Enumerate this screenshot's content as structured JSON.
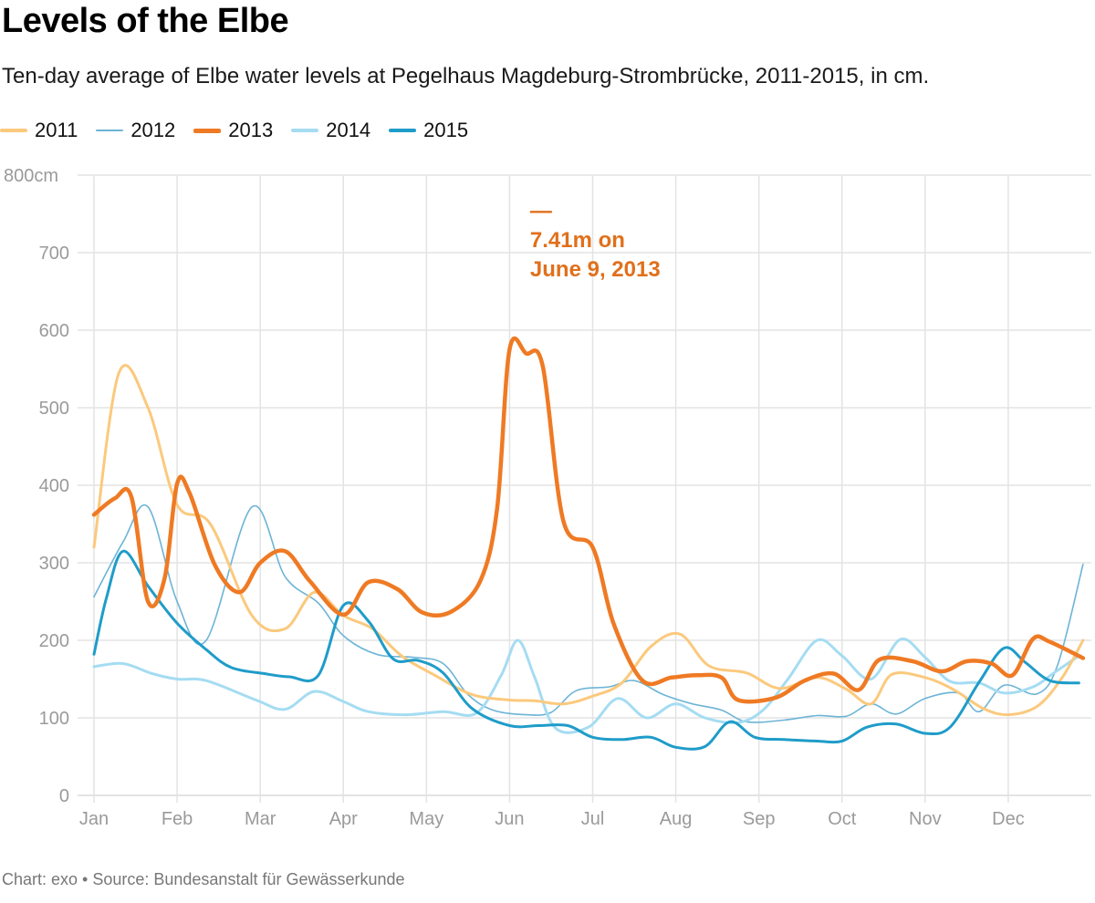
{
  "colors": {
    "2011": "#fbc97d",
    "2012": "#6cb4d6",
    "2013": "#ef7a24",
    "2014": "#a5dcf2",
    "2015": "#1f9cc9",
    "annotation": "#e0701c",
    "grid": "#e3e3e3",
    "axis_text": "#9a9a9a"
  },
  "chart_data": {
    "type": "line",
    "title": "Levels of the Elbe",
    "subtitle": "Ten-day average of Elbe water levels at Pegelhaus Magdeburg-Strombrücke, 2011-2015, in cm.",
    "source": "Chart: exo • Source: Bundesanstalt für Gewässerkunde",
    "x_unit": "month index (0 = start of Jan, 12 = end of Dec)",
    "xlim": [
      0,
      12
    ],
    "ylim": [
      0,
      800
    ],
    "x_ticks": [
      "Jan",
      "Feb",
      "Mar",
      "Apr",
      "May",
      "Jun",
      "Jul",
      "Aug",
      "Sep",
      "Oct",
      "Nov",
      "Dec"
    ],
    "y_ticks": [
      "800cm",
      "700",
      "600",
      "500",
      "400",
      "300",
      "200",
      "100",
      "0"
    ],
    "y_tick_values": [
      800,
      700,
      600,
      500,
      400,
      300,
      200,
      100,
      0
    ],
    "grid": true,
    "legend_position": "top-left",
    "series": [
      {
        "name": "2011",
        "width": 3,
        "points": [
          [
            0,
            320
          ],
          [
            0.3,
            545
          ],
          [
            0.65,
            500
          ],
          [
            1.0,
            375
          ],
          [
            1.4,
            350
          ],
          [
            1.9,
            232
          ],
          [
            2.3,
            215
          ],
          [
            2.65,
            262
          ],
          [
            3.0,
            232
          ],
          [
            3.35,
            215
          ],
          [
            3.7,
            180
          ],
          [
            4.1,
            155
          ],
          [
            4.55,
            130
          ],
          [
            5.0,
            123
          ],
          [
            5.3,
            122
          ],
          [
            5.65,
            118
          ],
          [
            6.0,
            128
          ],
          [
            6.35,
            145
          ],
          [
            6.7,
            192
          ],
          [
            7.05,
            208
          ],
          [
            7.4,
            167
          ],
          [
            7.85,
            158
          ],
          [
            8.25,
            138
          ],
          [
            8.7,
            152
          ],
          [
            9.05,
            137
          ],
          [
            9.35,
            118
          ],
          [
            9.6,
            156
          ],
          [
            10.0,
            152
          ],
          [
            10.35,
            136
          ],
          [
            10.7,
            112
          ],
          [
            11.0,
            104
          ],
          [
            11.35,
            115
          ],
          [
            11.65,
            152
          ],
          [
            11.9,
            200
          ]
        ]
      },
      {
        "name": "2012",
        "width": 1.6,
        "points": [
          [
            0,
            256
          ],
          [
            0.35,
            327
          ],
          [
            0.65,
            372
          ],
          [
            1.0,
            250
          ],
          [
            1.35,
            200
          ],
          [
            1.9,
            372
          ],
          [
            2.3,
            282
          ],
          [
            2.7,
            248
          ],
          [
            3.0,
            206
          ],
          [
            3.4,
            182
          ],
          [
            3.85,
            178
          ],
          [
            4.2,
            170
          ],
          [
            4.5,
            130
          ],
          [
            4.8,
            110
          ],
          [
            5.2,
            104
          ],
          [
            5.5,
            107
          ],
          [
            5.8,
            135
          ],
          [
            6.2,
            140
          ],
          [
            6.5,
            148
          ],
          [
            6.85,
            130
          ],
          [
            7.2,
            118
          ],
          [
            7.55,
            110
          ],
          [
            7.85,
            95
          ],
          [
            8.3,
            97
          ],
          [
            8.7,
            103
          ],
          [
            9.05,
            102
          ],
          [
            9.35,
            118
          ],
          [
            9.65,
            105
          ],
          [
            10.0,
            125
          ],
          [
            10.4,
            132
          ],
          [
            10.65,
            108
          ],
          [
            10.95,
            142
          ],
          [
            11.35,
            131
          ],
          [
            11.6,
            170
          ],
          [
            11.9,
            298
          ]
        ]
      },
      {
        "name": "2013",
        "width": 4.5,
        "points": [
          [
            0,
            362
          ],
          [
            0.25,
            383
          ],
          [
            0.45,
            385
          ],
          [
            0.65,
            250
          ],
          [
            0.85,
            280
          ],
          [
            1.0,
            402
          ],
          [
            1.15,
            390
          ],
          [
            1.45,
            298
          ],
          [
            1.75,
            262
          ],
          [
            2.0,
            300
          ],
          [
            2.3,
            315
          ],
          [
            2.6,
            276
          ],
          [
            3.0,
            233
          ],
          [
            3.3,
            275
          ],
          [
            3.65,
            266
          ],
          [
            3.95,
            236
          ],
          [
            4.3,
            237
          ],
          [
            4.65,
            277
          ],
          [
            4.85,
            370
          ],
          [
            5.0,
            575
          ],
          [
            5.2,
            570
          ],
          [
            5.4,
            553
          ],
          [
            5.65,
            353
          ],
          [
            6.0,
            320
          ],
          [
            6.25,
            222
          ],
          [
            6.6,
            148
          ],
          [
            6.95,
            152
          ],
          [
            7.25,
            155
          ],
          [
            7.55,
            152
          ],
          [
            7.75,
            123
          ],
          [
            8.2,
            126
          ],
          [
            8.55,
            148
          ],
          [
            8.9,
            157
          ],
          [
            9.2,
            136
          ],
          [
            9.45,
            175
          ],
          [
            9.85,
            173
          ],
          [
            10.2,
            160
          ],
          [
            10.5,
            173
          ],
          [
            10.8,
            170
          ],
          [
            11.05,
            155
          ],
          [
            11.3,
            202
          ],
          [
            11.5,
            198
          ],
          [
            11.9,
            177
          ]
        ]
      },
      {
        "name": "2014",
        "width": 3,
        "points": [
          [
            0,
            166
          ],
          [
            0.35,
            170
          ],
          [
            0.7,
            157
          ],
          [
            1.0,
            150
          ],
          [
            1.35,
            148
          ],
          [
            1.95,
            123
          ],
          [
            2.3,
            111
          ],
          [
            2.65,
            134
          ],
          [
            3.0,
            121
          ],
          [
            3.3,
            108
          ],
          [
            3.75,
            104
          ],
          [
            4.2,
            108
          ],
          [
            4.6,
            106
          ],
          [
            4.9,
            155
          ],
          [
            5.1,
            200
          ],
          [
            5.3,
            153
          ],
          [
            5.55,
            87
          ],
          [
            5.95,
            88
          ],
          [
            6.3,
            125
          ],
          [
            6.65,
            100
          ],
          [
            7.0,
            118
          ],
          [
            7.35,
            100
          ],
          [
            7.75,
            94
          ],
          [
            8.05,
            110
          ],
          [
            8.35,
            150
          ],
          [
            8.7,
            200
          ],
          [
            9.0,
            180
          ],
          [
            9.35,
            150
          ],
          [
            9.7,
            201
          ],
          [
            10.0,
            178
          ],
          [
            10.3,
            147
          ],
          [
            10.65,
            145
          ],
          [
            10.95,
            132
          ],
          [
            11.3,
            140
          ],
          [
            11.55,
            158
          ],
          [
            11.85,
            180
          ]
        ]
      },
      {
        "name": "2015",
        "width": 3,
        "points": [
          [
            0,
            182
          ],
          [
            0.15,
            255
          ],
          [
            0.35,
            315
          ],
          [
            0.65,
            270
          ],
          [
            1.0,
            222
          ],
          [
            1.35,
            188
          ],
          [
            1.65,
            165
          ],
          [
            2.05,
            157
          ],
          [
            2.35,
            153
          ],
          [
            2.7,
            155
          ],
          [
            3.0,
            245
          ],
          [
            3.3,
            225
          ],
          [
            3.6,
            176
          ],
          [
            3.9,
            174
          ],
          [
            4.2,
            158
          ],
          [
            4.55,
            112
          ],
          [
            5.0,
            90
          ],
          [
            5.35,
            90
          ],
          [
            5.7,
            90
          ],
          [
            6.0,
            75
          ],
          [
            6.35,
            72
          ],
          [
            6.7,
            75
          ],
          [
            7.0,
            62
          ],
          [
            7.35,
            63
          ],
          [
            7.65,
            95
          ],
          [
            7.95,
            75
          ],
          [
            8.3,
            72
          ],
          [
            8.7,
            70
          ],
          [
            9.0,
            70
          ],
          [
            9.3,
            88
          ],
          [
            9.65,
            92
          ],
          [
            10.0,
            80
          ],
          [
            10.3,
            88
          ],
          [
            10.65,
            146
          ],
          [
            10.95,
            190
          ],
          [
            11.2,
            172
          ],
          [
            11.5,
            148
          ],
          [
            11.85,
            145
          ]
        ]
      }
    ],
    "annotation": {
      "lines": [
        "—",
        "7.41m on",
        "June 9, 2013"
      ],
      "x": 5.28,
      "y": 745
    }
  }
}
